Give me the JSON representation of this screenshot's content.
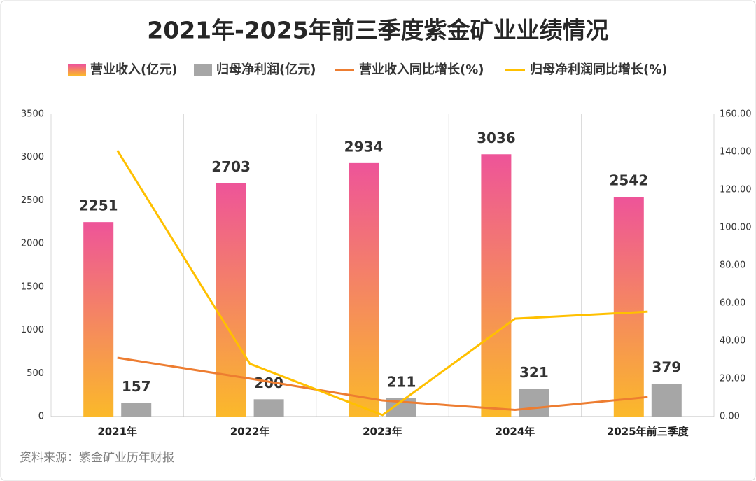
{
  "chart_data": {
    "type": "bar-line",
    "title": "2021年-2025年前三季度紫金矿业业绩情况",
    "categories": [
      "2021年",
      "2022年",
      "2023年",
      "2024年",
      "2025年前三季度"
    ],
    "series": [
      {
        "name": "营业收入(亿元)",
        "type": "bar",
        "gradient": [
          "#ee5499",
          "#fbb92a"
        ],
        "values": [
          2251,
          2703,
          2934,
          3036,
          2542
        ]
      },
      {
        "name": "归母净利润(亿元)",
        "type": "bar",
        "color": "#a6a6a6",
        "values": [
          157,
          200,
          211,
          321,
          379
        ]
      },
      {
        "name": "营业收入同比增长(%)",
        "type": "line",
        "axis": "y2",
        "color": "#ed7d31",
        "values": [
          31.1,
          20.1,
          8.5,
          3.5,
          10.3
        ]
      },
      {
        "name": "归母净利润同比增长(%)",
        "type": "line",
        "axis": "y2",
        "color": "#ffc000",
        "values": [
          140.8,
          27.9,
          0.8,
          51.8,
          55.5
        ]
      }
    ],
    "ylim": [
      0,
      3500
    ],
    "yticks": [
      0,
      500,
      1000,
      1500,
      2000,
      2500,
      3000,
      3500
    ],
    "y2lim": [
      0,
      160
    ],
    "y2ticks": [
      {
        "value": 0,
        "label": "0.00"
      },
      {
        "value": 20,
        "label": "20.00"
      },
      {
        "value": 40,
        "label": "40.00"
      },
      {
        "value": 60,
        "label": "60.00"
      },
      {
        "value": 80,
        "label": "80.00"
      },
      {
        "value": 100,
        "label": "100.00"
      },
      {
        "value": 120,
        "label": "120.00"
      },
      {
        "value": 140,
        "label": "140.00"
      },
      {
        "value": 160,
        "label": "160.00"
      }
    ],
    "grid": true,
    "source": "资料来源：紫金矿业历年财报"
  }
}
